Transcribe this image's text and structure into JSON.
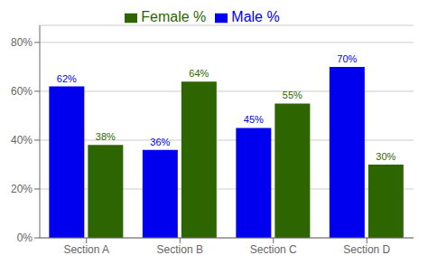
{
  "chart_data": {
    "type": "bar",
    "categories": [
      "Section A",
      "Section B",
      "Section C",
      "Section D"
    ],
    "series": [
      {
        "name": "Male %",
        "color": "#0000ee",
        "values": [
          0.62,
          0.36,
          0.45,
          0.7
        ],
        "value_labels": [
          "62%",
          "36%",
          "45%",
          "70%"
        ]
      },
      {
        "name": "Female %",
        "color": "#2d6600",
        "values": [
          0.38,
          0.64,
          0.55,
          0.3
        ],
        "value_labels": [
          "38%",
          "64%",
          "55%",
          "30%"
        ]
      }
    ],
    "ylim": [
      0,
      0.87
    ],
    "yticks": [
      {
        "value": 0,
        "label": "0%"
      },
      {
        "value": 0.2,
        "label": "20%"
      },
      {
        "value": 0.4,
        "label": "40%"
      },
      {
        "value": 0.6,
        "label": "60%"
      },
      {
        "value": 0.8,
        "label": "80%"
      }
    ],
    "grid": true,
    "legend": "top",
    "data_labels": true
  }
}
